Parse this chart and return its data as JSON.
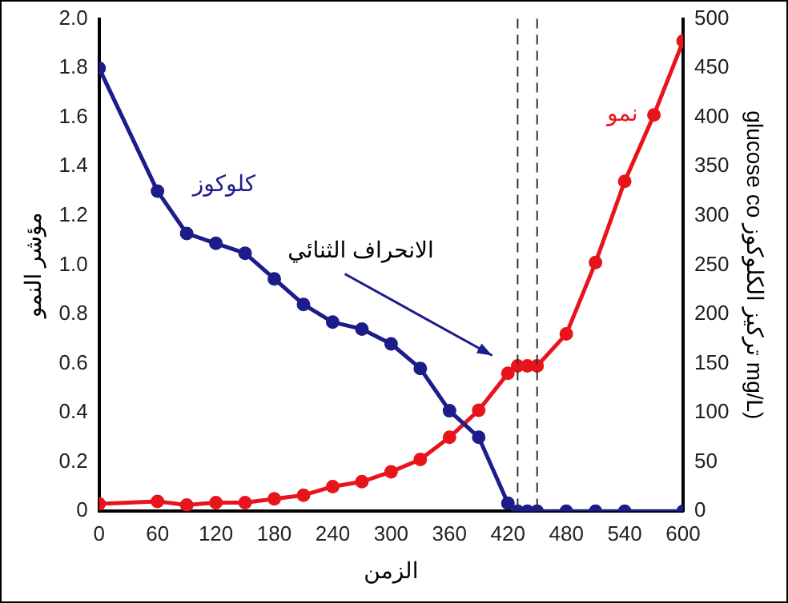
{
  "chart_data": {
    "type": "line",
    "xlabel": "الزمن",
    "ylabel": "مؤشر النمو",
    "y2label": "glucose co تركيز الكلوكوز mg/L)",
    "xlim": [
      0,
      600
    ],
    "xticks": [
      0,
      60,
      120,
      180,
      240,
      300,
      360,
      420,
      480,
      540,
      600
    ],
    "ylim": [
      0,
      2
    ],
    "yticks": [
      0,
      0.2,
      0.4,
      0.6,
      0.8,
      {
        "value": 1,
        "label": "1.0"
      },
      1.2,
      1.4,
      1.6,
      1.8,
      {
        "value": 2,
        "label": "2.0"
      }
    ],
    "y2lim": [
      0,
      500
    ],
    "y2ticks": [
      0,
      50,
      100,
      150,
      200,
      250,
      300,
      350,
      400,
      450,
      500
    ],
    "grid": false,
    "legend": false,
    "marker": "circle",
    "line_style": "solid",
    "series": [
      {
        "name": "كلوكوز",
        "color": "#1c1c8a",
        "axis": "y2",
        "x": [
          0,
          60,
          90,
          120,
          150,
          180,
          210,
          240,
          270,
          300,
          330,
          360,
          390,
          420,
          430,
          440,
          450,
          480,
          510,
          540,
          600
        ],
        "values": [
          450,
          325,
          282,
          272,
          262,
          236,
          210,
          192,
          185,
          170,
          145,
          102,
          75,
          8,
          0,
          0,
          0,
          0,
          0,
          0,
          0
        ]
      },
      {
        "name": "نمو",
        "color": "#e8141c",
        "x": [
          0,
          60,
          90,
          120,
          150,
          180,
          210,
          240,
          270,
          300,
          330,
          360,
          390,
          420,
          430,
          440,
          450,
          480,
          510,
          540,
          570,
          600
        ],
        "values": [
          0.03,
          0.04,
          0.025,
          0.035,
          0.035,
          0.05,
          0.065,
          0.1,
          0.12,
          0.16,
          0.21,
          0.3,
          0.41,
          0.56,
          0.59,
          0.59,
          0.59,
          0.72,
          1.01,
          1.34,
          1.61,
          1.91
        ]
      }
    ],
    "ref_lines": [
      {
        "axis": "x",
        "value": 430,
        "line_style": "dashed",
        "color": "#333333"
      },
      {
        "axis": "x",
        "value": 450,
        "line_style": "dashed",
        "color": "#333333"
      }
    ],
    "annotations": [
      "الانحراف الثنائي"
    ]
  }
}
